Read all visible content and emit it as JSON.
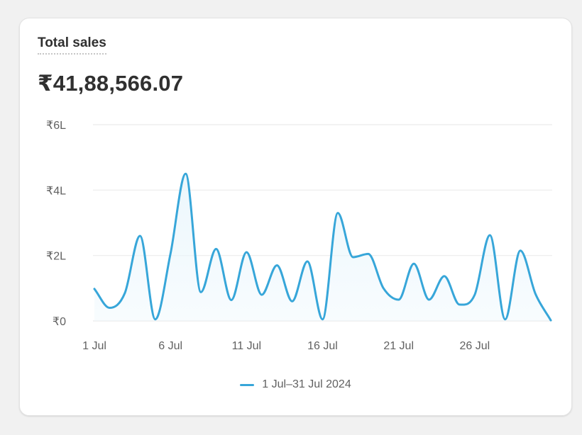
{
  "card": {
    "title": "Total sales",
    "total": "₹41,88,566.07"
  },
  "colors": {
    "line": "#37a6d9",
    "fill": "#eaf6fc",
    "grid": "#ebebeb"
  },
  "chart_data": {
    "type": "area",
    "title": "Total sales",
    "xlabel": "",
    "ylabel": "",
    "x": [
      "1 Jul",
      "2 Jul",
      "3 Jul",
      "4 Jul",
      "5 Jul",
      "6 Jul",
      "7 Jul",
      "8 Jul",
      "9 Jul",
      "10 Jul",
      "11 Jul",
      "12 Jul",
      "13 Jul",
      "14 Jul",
      "15 Jul",
      "16 Jul",
      "17 Jul",
      "18 Jul",
      "19 Jul",
      "20 Jul",
      "21 Jul",
      "22 Jul",
      "23 Jul",
      "24 Jul",
      "25 Jul",
      "26 Jul",
      "27 Jul",
      "28 Jul",
      "29 Jul",
      "30 Jul",
      "31 Jul"
    ],
    "series": [
      {
        "name": "1 Jul–31 Jul 2024",
        "values": [
          98000,
          40000,
          85000,
          260000,
          5000,
          205000,
          450000,
          88000,
          220000,
          64000,
          210000,
          80000,
          170000,
          60000,
          182000,
          5000,
          330000,
          195000,
          205000,
          100000,
          65000,
          175000,
          65000,
          137000,
          50000,
          80000,
          262000,
          5000,
          215000,
          82000,
          2000
        ]
      }
    ],
    "ylim": [
      0,
      600000
    ],
    "yticks": [
      {
        "value": 0,
        "label": "₹0"
      },
      {
        "value": 200000,
        "label": "₹2L"
      },
      {
        "value": 400000,
        "label": "₹4L"
      },
      {
        "value": 600000,
        "label": "₹6L"
      }
    ],
    "xticks": [
      {
        "index": 0,
        "label": "1 Jul"
      },
      {
        "index": 5,
        "label": "6 Jul"
      },
      {
        "index": 10,
        "label": "11 Jul"
      },
      {
        "index": 15,
        "label": "16 Jul"
      },
      {
        "index": 20,
        "label": "21 Jul"
      },
      {
        "index": 25,
        "label": "26 Jul"
      }
    ],
    "grid": true,
    "legend": "bottom-center"
  }
}
